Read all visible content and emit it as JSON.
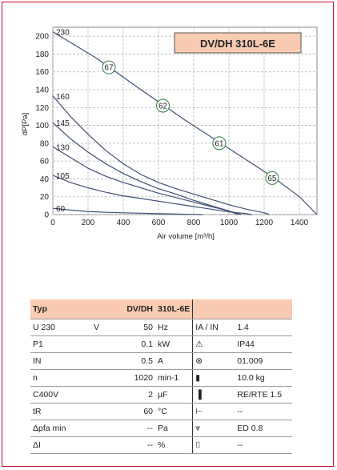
{
  "chart_data": {
    "type": "line",
    "title": "DV/DH 310L-6E",
    "xlabel": "Air volume [m³/h]",
    "ylabel": "dP[Pa]",
    "xlim": [
      0,
      1500
    ],
    "ylim": [
      0,
      210
    ],
    "xticks": [
      0,
      200,
      400,
      600,
      800,
      1000,
      1200,
      1400
    ],
    "yticks": [
      0,
      20,
      40,
      60,
      80,
      100,
      120,
      140,
      160,
      180,
      200
    ],
    "grid": true,
    "series": [
      {
        "name": "230",
        "x": [
          0,
          250,
          500,
          750,
          1000,
          1250,
          1400,
          1500
        ],
        "y": [
          205,
          175,
          140,
          106,
          74,
          42,
          20,
          0
        ]
      },
      {
        "name": "160",
        "x": [
          0,
          100,
          200,
          300,
          400,
          500,
          600,
          700,
          800,
          900,
          1000,
          1100,
          1200,
          1230
        ],
        "y": [
          133,
          110,
          90,
          72,
          57,
          45,
          36,
          29,
          23,
          17,
          11,
          6,
          2,
          0
        ]
      },
      {
        "name": "145",
        "x": [
          0,
          100,
          200,
          300,
          400,
          500,
          600,
          700,
          800,
          900,
          1000,
          1050
        ],
        "y": [
          103,
          85,
          70,
          57,
          46,
          37,
          29,
          23,
          16,
          10,
          4,
          0
        ]
      },
      {
        "name": "130",
        "x": [
          0,
          100,
          200,
          300,
          400,
          500,
          600,
          700,
          800,
          900,
          1000,
          1070
        ],
        "y": [
          76,
          64,
          52,
          43,
          36,
          30,
          24,
          19,
          14,
          9,
          4,
          0
        ]
      },
      {
        "name": "105",
        "x": [
          0,
          100,
          200,
          300,
          400,
          500,
          600,
          700,
          800,
          900,
          1000,
          1100,
          1130
        ],
        "y": [
          44,
          36,
          30,
          25,
          21,
          18,
          15,
          12,
          9,
          6,
          3,
          1,
          0
        ]
      },
      {
        "name": "60",
        "x": [
          0,
          100,
          200,
          300,
          400,
          500,
          600,
          700,
          800,
          850
        ],
        "y": [
          7,
          5,
          3.5,
          2.5,
          2,
          1.5,
          1,
          0.5,
          0.2,
          0
        ]
      }
    ],
    "annotations": [
      {
        "label": "67",
        "x": 318,
        "y": 165
      },
      {
        "label": "62",
        "x": 625,
        "y": 122
      },
      {
        "label": "61",
        "x": 945,
        "y": 80
      },
      {
        "label": "65",
        "x": 1245,
        "y": 41
      }
    ]
  },
  "table": {
    "header": {
      "typ": "Typ",
      "model": "DV/DH",
      "variant": "310L-6E"
    },
    "rows": [
      {
        "label": "U",
        "label_extra": "230",
        "unit_extra": "V",
        "value": "50",
        "unit": "Hz",
        "icon": "current-ratio-icon",
        "icon_text": "IA / IN",
        "right_value": "1.4"
      },
      {
        "label": "P1",
        "label_extra": "",
        "unit_extra": "",
        "value": "0.1",
        "unit": "kW",
        "icon": "protection-triangle-icon",
        "icon_text": "⚠",
        "right_value": "IP44"
      },
      {
        "label": "IN",
        "label_extra": "",
        "unit_extra": "",
        "value": "0.5",
        "unit": "A",
        "icon": "wiring-diagram-icon",
        "icon_text": "⊛",
        "right_value": "01.009"
      },
      {
        "label": "n",
        "label_extra": "",
        "unit_extra": "",
        "value": "1020",
        "unit": "min-1",
        "icon": "weight-icon",
        "icon_text": "▮",
        "right_value": "10.0 kg"
      },
      {
        "label": "C400V",
        "label_extra": "",
        "unit_extra": "",
        "value": "2",
        "unit": "µF",
        "icon": "motor-protection-icon",
        "icon_text": "▐",
        "right_value": "RE/RTE 1.5"
      },
      {
        "label": "tR",
        "label_extra": "",
        "unit_extra": "",
        "value": "60",
        "unit": "°C",
        "icon": "temperature-icon",
        "icon_text": "⊢",
        "right_value": "--"
      },
      {
        "label": "Δpfa min",
        "label_extra": "",
        "unit_extra": "",
        "value": "--",
        "unit": "Pa",
        "icon": "filter-icon",
        "icon_text": "⩔",
        "right_value": "ED 0.8"
      },
      {
        "label": "ΔI",
        "label_extra": "",
        "unit_extra": "",
        "value": "--",
        "unit": "%",
        "icon": "control-icon",
        "icon_text": "⌷",
        "right_value": "--"
      }
    ]
  }
}
